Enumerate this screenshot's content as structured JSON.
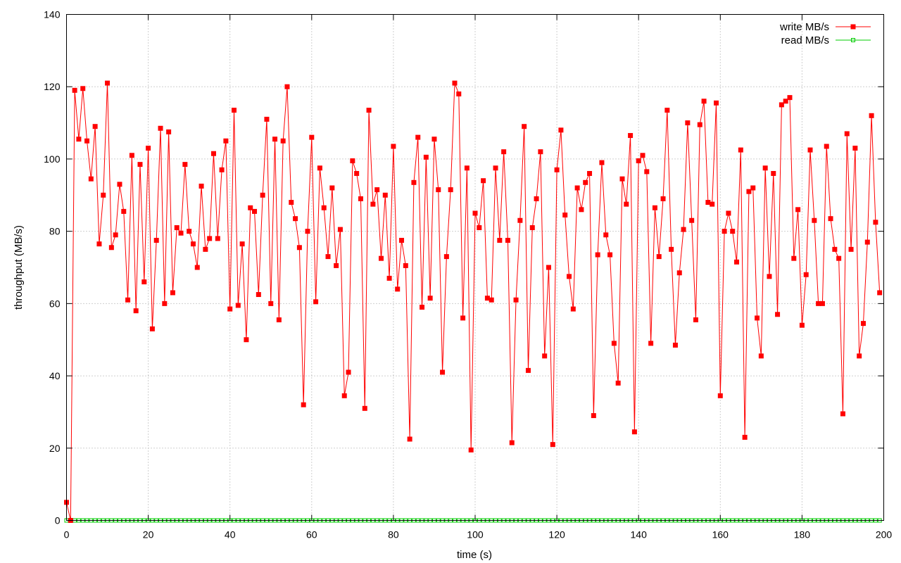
{
  "chart_data": {
    "type": "line",
    "title": "",
    "xlabel": "time (s)",
    "ylabel": "throughput (MB/s)",
    "xlim": [
      0,
      200
    ],
    "ylim": [
      0,
      140
    ],
    "xticks": [
      0,
      20,
      40,
      60,
      80,
      100,
      120,
      140,
      160,
      180,
      200
    ],
    "yticks": [
      0,
      20,
      40,
      60,
      80,
      100,
      120,
      140
    ],
    "xtick_labels": [
      "0",
      "20",
      "40",
      "60",
      "80",
      "100",
      "120",
      "140",
      "160",
      "180",
      "200"
    ],
    "ytick_labels": [
      "0",
      "20",
      "40",
      "60",
      "80",
      "100",
      "120",
      "140"
    ],
    "grid": true,
    "legend_position": "top-right",
    "series": [
      {
        "name": "write MB/s",
        "color": "#ff0000",
        "marker": "filled-square",
        "x": [
          0,
          1,
          2,
          3,
          4,
          5,
          6,
          7,
          8,
          9,
          10,
          11,
          12,
          13,
          14,
          15,
          16,
          17,
          18,
          19,
          20,
          21,
          22,
          23,
          24,
          25,
          26,
          27,
          28,
          29,
          30,
          31,
          32,
          33,
          34,
          35,
          36,
          37,
          38,
          39,
          40,
          41,
          42,
          43,
          44,
          45,
          46,
          47,
          48,
          49,
          50,
          51,
          52,
          53,
          54,
          55,
          56,
          57,
          58,
          59,
          60,
          61,
          62,
          63,
          64,
          65,
          66,
          67,
          68,
          69,
          70,
          71,
          72,
          73,
          74,
          75,
          76,
          77,
          78,
          79,
          80,
          81,
          82,
          83,
          84,
          85,
          86,
          87,
          88,
          89,
          90,
          91,
          92,
          93,
          94,
          95,
          96,
          97,
          98,
          99,
          100,
          101,
          102,
          103,
          104,
          105,
          106,
          107,
          108,
          109,
          110,
          111,
          112,
          113,
          114,
          115,
          116,
          117,
          118,
          119,
          120,
          121,
          122,
          123,
          124,
          125,
          126,
          127,
          128,
          129,
          130,
          131,
          132,
          133,
          134,
          135,
          136,
          137,
          138,
          139,
          140,
          141,
          142,
          143,
          144,
          145,
          146,
          147,
          148,
          149,
          150,
          151,
          152,
          153,
          154,
          155,
          156,
          157,
          158,
          159,
          160,
          161,
          162,
          163,
          164,
          165,
          166,
          167,
          168,
          169,
          170,
          171,
          172,
          173,
          174,
          175,
          176,
          177,
          178,
          179,
          180,
          181,
          182,
          183,
          184,
          185,
          186,
          187,
          188,
          189,
          190,
          191,
          192,
          193,
          194,
          195,
          196,
          197,
          198,
          199
        ],
        "values": [
          5,
          0,
          119,
          105.5,
          119.5,
          105,
          94.5,
          109,
          76.5,
          90,
          121,
          75.5,
          79,
          93,
          85.5,
          61,
          101,
          58,
          98.5,
          66,
          103,
          53,
          77.5,
          108.5,
          60,
          107.5,
          63,
          81,
          79.5,
          98.5,
          80,
          76.5,
          70,
          92.5,
          75,
          78,
          101.5,
          78,
          97,
          105,
          58.5,
          113.5,
          59.5,
          76.5,
          50,
          86.5,
          85.5,
          62.5,
          90,
          111,
          60,
          105.5,
          55.5,
          105,
          120,
          88,
          83.5,
          75.5,
          32,
          80,
          106,
          60.5,
          97.5,
          86.5,
          73,
          92,
          70.5,
          80.5,
          34.5,
          41,
          99.5,
          96,
          89,
          31,
          113.5,
          87.5,
          91.5,
          72.5,
          90,
          67,
          103.5,
          64,
          77.5,
          70.5,
          22.5,
          93.5,
          106,
          59,
          100.5,
          61.5,
          105.5,
          91.5,
          41,
          73,
          91.5,
          121,
          118,
          56,
          97.5,
          19.5,
          85,
          81,
          94,
          61.5,
          61,
          97.5,
          77.5,
          102,
          77.5,
          21.5,
          61,
          83,
          109,
          41.5,
          81,
          89,
          102,
          45.5,
          70,
          21,
          97,
          108,
          84.5,
          67.5,
          58.5,
          92,
          86,
          93.5,
          96,
          29,
          73.5,
          99,
          79,
          73.5,
          49,
          38,
          94.5,
          87.5,
          106.5,
          24.5,
          99.5,
          101,
          96.5,
          49,
          86.5,
          73,
          89,
          113.5,
          75,
          48.5,
          68.5,
          80.5,
          110,
          83,
          55.5,
          109.5,
          116,
          88,
          87.5,
          115.5,
          34.5,
          80,
          85,
          80,
          71.5,
          102.5,
          23,
          91,
          92,
          56,
          45.5,
          97.5,
          67.5,
          96,
          57,
          115,
          116,
          117,
          72.5,
          86,
          54,
          68,
          102.5,
          83,
          60,
          60,
          103.5,
          83.5,
          75,
          72.5,
          29.5,
          107,
          75,
          103,
          45.5,
          54.5,
          77,
          112,
          82.5,
          63
        ]
      },
      {
        "name": "read MB/s",
        "color": "#00cc00",
        "marker": "open-square",
        "x": [
          0,
          1,
          2,
          3,
          4,
          5,
          6,
          7,
          8,
          9,
          10,
          11,
          12,
          13,
          14,
          15,
          16,
          17,
          18,
          19,
          20,
          21,
          22,
          23,
          24,
          25,
          26,
          27,
          28,
          29,
          30,
          31,
          32,
          33,
          34,
          35,
          36,
          37,
          38,
          39,
          40,
          41,
          42,
          43,
          44,
          45,
          46,
          47,
          48,
          49,
          50,
          51,
          52,
          53,
          54,
          55,
          56,
          57,
          58,
          59,
          60,
          61,
          62,
          63,
          64,
          65,
          66,
          67,
          68,
          69,
          70,
          71,
          72,
          73,
          74,
          75,
          76,
          77,
          78,
          79,
          80,
          81,
          82,
          83,
          84,
          85,
          86,
          87,
          88,
          89,
          90,
          91,
          92,
          93,
          94,
          95,
          96,
          97,
          98,
          99,
          100,
          101,
          102,
          103,
          104,
          105,
          106,
          107,
          108,
          109,
          110,
          111,
          112,
          113,
          114,
          115,
          116,
          117,
          118,
          119,
          120,
          121,
          122,
          123,
          124,
          125,
          126,
          127,
          128,
          129,
          130,
          131,
          132,
          133,
          134,
          135,
          136,
          137,
          138,
          139,
          140,
          141,
          142,
          143,
          144,
          145,
          146,
          147,
          148,
          149,
          150,
          151,
          152,
          153,
          154,
          155,
          156,
          157,
          158,
          159,
          160,
          161,
          162,
          163,
          164,
          165,
          166,
          167,
          168,
          169,
          170,
          171,
          172,
          173,
          174,
          175,
          176,
          177,
          178,
          179,
          180,
          181,
          182,
          183,
          184,
          185,
          186,
          187,
          188,
          189,
          190,
          191,
          192,
          193,
          194,
          195,
          196,
          197,
          198,
          199
        ],
        "values": [
          0,
          0,
          0,
          0,
          0,
          0,
          0,
          0,
          0,
          0,
          0,
          0,
          0,
          0,
          0,
          0,
          0,
          0,
          0,
          0,
          0,
          0,
          0,
          0,
          0,
          0,
          0,
          0,
          0,
          0,
          0,
          0,
          0,
          0,
          0,
          0,
          0,
          0,
          0,
          0,
          0,
          0,
          0,
          0,
          0,
          0,
          0,
          0,
          0,
          0,
          0,
          0,
          0,
          0,
          0,
          0,
          0,
          0,
          0,
          0,
          0,
          0,
          0,
          0,
          0,
          0,
          0,
          0,
          0,
          0,
          0,
          0,
          0,
          0,
          0,
          0,
          0,
          0,
          0,
          0,
          0,
          0,
          0,
          0,
          0,
          0,
          0,
          0,
          0,
          0,
          0,
          0,
          0,
          0,
          0,
          0,
          0,
          0,
          0,
          0,
          0,
          0,
          0,
          0,
          0,
          0,
          0,
          0,
          0,
          0,
          0,
          0,
          0,
          0,
          0,
          0,
          0,
          0,
          0,
          0,
          0,
          0,
          0,
          0,
          0,
          0,
          0,
          0,
          0,
          0,
          0,
          0,
          0,
          0,
          0,
          0,
          0,
          0,
          0,
          0,
          0,
          0,
          0,
          0,
          0,
          0,
          0,
          0,
          0,
          0,
          0,
          0,
          0,
          0,
          0,
          0,
          0,
          0,
          0,
          0,
          0,
          0,
          0,
          0,
          0,
          0,
          0,
          0,
          0,
          0,
          0,
          0,
          0,
          0,
          0,
          0,
          0,
          0,
          0,
          0,
          0,
          0,
          0,
          0,
          0,
          0,
          0,
          0,
          0,
          0,
          0,
          0,
          0,
          0,
          0,
          0,
          0,
          0,
          0,
          0
        ]
      }
    ]
  }
}
